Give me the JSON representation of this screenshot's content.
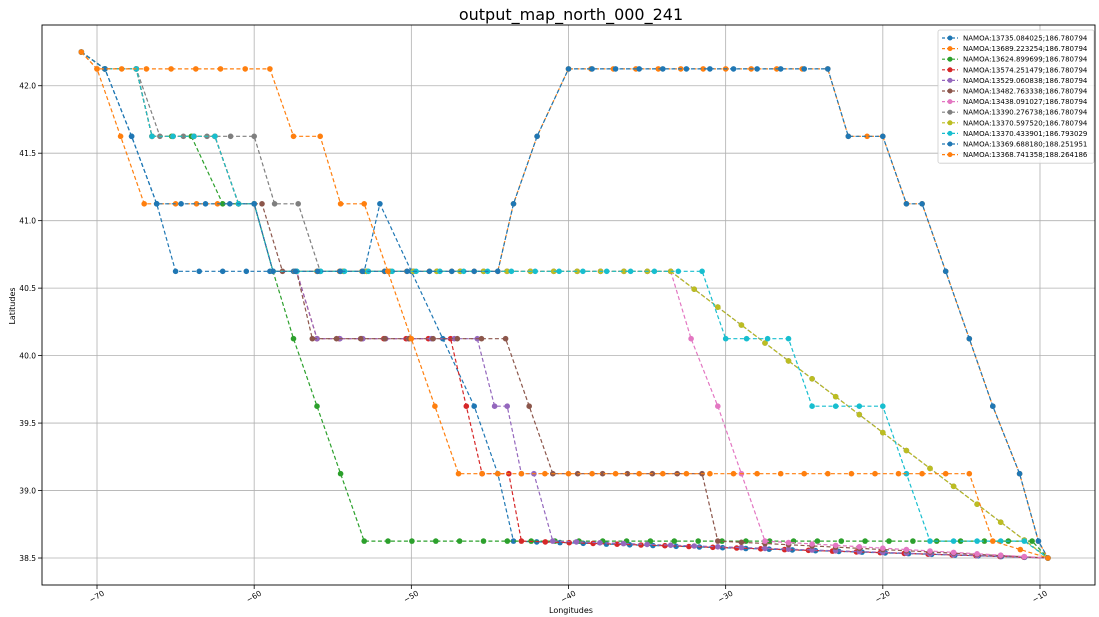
{
  "chart_data": {
    "type": "line",
    "title": "output_map_north_000_241",
    "xlabel": "Longitudes",
    "ylabel": "Latitudes",
    "xlim": [
      -73.5,
      -6.5
    ],
    "ylim": [
      38.3,
      42.45
    ],
    "xticks": [
      -70,
      -60,
      -50,
      -40,
      -30,
      -20,
      -10
    ],
    "xtick_labels": [
      "−70",
      "−60",
      "−50",
      "−40",
      "−30",
      "−20",
      "−10"
    ],
    "yticks": [
      38.5,
      39.0,
      39.5,
      40.0,
      40.5,
      41.0,
      41.5,
      42.0
    ],
    "ytick_labels": [
      "38.5",
      "39.0",
      "39.5",
      "40.0",
      "40.5",
      "41.0",
      "41.5",
      "42.0"
    ],
    "grid": true,
    "legend_position": "top-right",
    "series": [
      {
        "name": "NAMOA:13735.084025;186.780794",
        "color": "#1f77b4",
        "points": [
          [
            -71,
            42.25
          ],
          [
            -69.5,
            42.125
          ],
          [
            -67.8,
            41.625
          ],
          [
            -66.2,
            41.125
          ],
          [
            -65,
            40.625
          ],
          [
            -53,
            40.625
          ],
          [
            -52,
            41.125
          ],
          [
            -50,
            40.625
          ],
          [
            -48,
            40.125
          ],
          [
            -46,
            39.625
          ],
          [
            -44.5,
            39.125
          ],
          [
            -43.5,
            38.625
          ],
          [
            -9.5,
            38.5
          ]
        ]
      },
      {
        "name": "NAMOA:13689.223254;186.780794",
        "color": "#ff7f0e",
        "points": [
          [
            -71,
            42.25
          ],
          [
            -70,
            42.125
          ],
          [
            -68.5,
            41.625
          ],
          [
            -67,
            41.125
          ],
          [
            -65,
            41.125
          ],
          [
            -61,
            41.125
          ],
          [
            -60,
            41.125
          ],
          [
            -58.8,
            40.625
          ],
          [
            -56,
            40.625
          ],
          [
            -46,
            40.625
          ],
          [
            -44.5,
            40.625
          ],
          [
            -43.5,
            41.125
          ],
          [
            -42,
            41.625
          ],
          [
            -40,
            42.125
          ],
          [
            -30,
            42.125
          ],
          [
            -23.5,
            42.125
          ],
          [
            -22.2,
            41.625
          ],
          [
            -21,
            41.625
          ],
          [
            -20,
            41.625
          ],
          [
            -18.5,
            41.125
          ],
          [
            -17.5,
            41.125
          ],
          [
            -16,
            40.625
          ],
          [
            -14.5,
            40.125
          ],
          [
            -13,
            39.625
          ],
          [
            -11.3,
            39.125
          ],
          [
            -10.1,
            38.625
          ],
          [
            -9.5,
            38.5
          ]
        ]
      },
      {
        "name": "NAMOA:13624.899699;186.780794",
        "color": "#2ca02c",
        "points": [
          [
            -71,
            42.25
          ],
          [
            -69.5,
            42.125
          ],
          [
            -67.5,
            42.125
          ],
          [
            -66.5,
            41.625
          ],
          [
            -64,
            41.625
          ],
          [
            -62,
            41.125
          ],
          [
            -60,
            41.125
          ],
          [
            -58.8,
            40.625
          ],
          [
            -57.5,
            40.125
          ],
          [
            -56,
            39.625
          ],
          [
            -54.5,
            39.125
          ],
          [
            -53,
            38.625
          ],
          [
            -10.5,
            38.625
          ],
          [
            -9.5,
            38.5
          ]
        ]
      },
      {
        "name": "NAMOA:13574.251479;186.780794",
        "color": "#d62728",
        "points": [
          [
            -71,
            42.25
          ],
          [
            -69.5,
            42.125
          ],
          [
            -67.5,
            42.125
          ],
          [
            -66.5,
            41.625
          ],
          [
            -62.5,
            41.625
          ],
          [
            -61,
            41.125
          ],
          [
            -60,
            41.125
          ],
          [
            -58.8,
            40.625
          ],
          [
            -57.3,
            40.625
          ],
          [
            -56,
            40.125
          ],
          [
            -47.5,
            40.125
          ],
          [
            -46.5,
            39.625
          ],
          [
            -45.5,
            39.125
          ],
          [
            -43.8,
            39.125
          ],
          [
            -43,
            38.625
          ],
          [
            -9.5,
            38.5
          ]
        ]
      },
      {
        "name": "NAMOA:13529.060838;186.780794",
        "color": "#9467bd",
        "points": [
          [
            -71,
            42.25
          ],
          [
            -69.5,
            42.125
          ],
          [
            -67.5,
            42.125
          ],
          [
            -66.5,
            41.625
          ],
          [
            -62.5,
            41.625
          ],
          [
            -61,
            41.125
          ],
          [
            -60,
            41.125
          ],
          [
            -58.8,
            40.625
          ],
          [
            -57.3,
            40.625
          ],
          [
            -56,
            40.125
          ],
          [
            -45.8,
            40.125
          ],
          [
            -44.7,
            39.625
          ],
          [
            -43.9,
            39.625
          ],
          [
            -43,
            39.125
          ],
          [
            -42.2,
            39.125
          ],
          [
            -41,
            38.625
          ],
          [
            -9.5,
            38.5
          ]
        ]
      },
      {
        "name": "NAMOA:13482.763338;186.780794",
        "color": "#8c564b",
        "points": [
          [
            -71,
            42.25
          ],
          [
            -69.5,
            42.125
          ],
          [
            -67.5,
            42.125
          ],
          [
            -66.5,
            41.625
          ],
          [
            -62.5,
            41.625
          ],
          [
            -61,
            41.125
          ],
          [
            -59.5,
            41.125
          ],
          [
            -58.2,
            40.625
          ],
          [
            -57.3,
            40.625
          ],
          [
            -56.3,
            40.125
          ],
          [
            -44,
            40.125
          ],
          [
            -42.5,
            39.625
          ],
          [
            -41,
            39.125
          ],
          [
            -31.5,
            39.125
          ],
          [
            -30.5,
            38.625
          ],
          [
            -9.5,
            38.5
          ]
        ]
      },
      {
        "name": "NAMOA:13438.091027;186.780794",
        "color": "#e377c2",
        "points": [
          [
            -71,
            42.25
          ],
          [
            -69.5,
            42.125
          ],
          [
            -67.5,
            42.125
          ],
          [
            -66.5,
            41.625
          ],
          [
            -62.5,
            41.625
          ],
          [
            -61,
            41.125
          ],
          [
            -60,
            41.125
          ],
          [
            -58.8,
            40.625
          ],
          [
            -33.5,
            40.625
          ],
          [
            -32.2,
            40.125
          ],
          [
            -30.5,
            39.625
          ],
          [
            -29,
            39.125
          ],
          [
            -27.5,
            38.625
          ],
          [
            -9.5,
            38.5
          ]
        ]
      },
      {
        "name": "NAMOA:13390.276738;186.780794",
        "color": "#7f7f7f",
        "points": [
          [
            -71,
            42.25
          ],
          [
            -69.5,
            42.125
          ],
          [
            -67.5,
            42.125
          ],
          [
            -66,
            41.625
          ],
          [
            -60,
            41.625
          ],
          [
            -58.7,
            41.125
          ],
          [
            -57.2,
            41.125
          ],
          [
            -55.8,
            40.625
          ],
          [
            -33.5,
            40.625
          ],
          [
            -9.5,
            38.5
          ]
        ]
      },
      {
        "name": "NAMOA:13370.597520;186.780794",
        "color": "#bcbd22",
        "points": [
          [
            -71,
            42.25
          ],
          [
            -69.5,
            42.125
          ],
          [
            -67.5,
            42.125
          ],
          [
            -66.5,
            41.625
          ],
          [
            -62.5,
            41.625
          ],
          [
            -61,
            41.125
          ],
          [
            -60,
            41.125
          ],
          [
            -58.8,
            40.625
          ],
          [
            -33.5,
            40.625
          ],
          [
            -9.5,
            38.5
          ]
        ]
      },
      {
        "name": "NAMOA:13370.433901;186.793029",
        "color": "#17becf",
        "points": [
          [
            -71,
            42.25
          ],
          [
            -69.5,
            42.125
          ],
          [
            -67.5,
            42.125
          ],
          [
            -66.5,
            41.625
          ],
          [
            -62.5,
            41.625
          ],
          [
            -61,
            41.125
          ],
          [
            -60,
            41.125
          ],
          [
            -58.8,
            40.625
          ],
          [
            -31.5,
            40.625
          ],
          [
            -30,
            40.125
          ],
          [
            -26,
            40.125
          ],
          [
            -24.5,
            39.625
          ],
          [
            -20,
            39.625
          ],
          [
            -18.5,
            39.125
          ],
          [
            -17,
            38.625
          ],
          [
            -11,
            38.625
          ],
          [
            -9.5,
            38.5
          ]
        ]
      },
      {
        "name": "NAMOA:13369.688180;188.251951",
        "color": "#1f77b4",
        "points": [
          [
            -71,
            42.25
          ],
          [
            -69.5,
            42.125
          ],
          [
            -67.8,
            41.625
          ],
          [
            -66.2,
            41.125
          ],
          [
            -60,
            41.125
          ],
          [
            -58.8,
            40.625
          ],
          [
            -46,
            40.625
          ],
          [
            -44.5,
            40.625
          ],
          [
            -43.5,
            41.125
          ],
          [
            -42,
            41.625
          ],
          [
            -40,
            42.125
          ],
          [
            -23.5,
            42.125
          ],
          [
            -22.2,
            41.625
          ],
          [
            -20,
            41.625
          ],
          [
            -18.5,
            41.125
          ],
          [
            -17.5,
            41.125
          ],
          [
            -16,
            40.625
          ],
          [
            -14.5,
            40.125
          ],
          [
            -13,
            39.625
          ],
          [
            -11.3,
            39.125
          ],
          [
            -10.1,
            38.625
          ],
          [
            -9.5,
            38.5
          ]
        ]
      },
      {
        "name": "NAMOA:13368.741358;188.264186",
        "color": "#ff7f0e",
        "points": [
          [
            -71,
            42.25
          ],
          [
            -70,
            42.125
          ],
          [
            -59,
            42.125
          ],
          [
            -57.5,
            41.625
          ],
          [
            -55.8,
            41.625
          ],
          [
            -54.5,
            41.125
          ],
          [
            -53,
            41.125
          ],
          [
            -51.5,
            40.625
          ],
          [
            -50,
            40.125
          ],
          [
            -48.5,
            39.625
          ],
          [
            -47,
            39.125
          ],
          [
            -45.5,
            39.125
          ],
          [
            -44.5,
            39.125
          ],
          [
            -14.5,
            39.125
          ],
          [
            -13,
            38.625
          ],
          [
            -9.5,
            38.5
          ]
        ]
      }
    ]
  }
}
